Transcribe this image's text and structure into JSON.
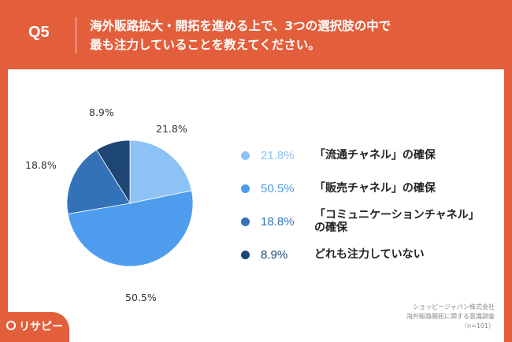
{
  "header": {
    "question_no": "Q5",
    "question_lines": [
      "海外販路拡大・開拓を進める上で、3つの選択肢の中で",
      "最も注力していることを教えてください。"
    ]
  },
  "chart_data": {
    "type": "pie",
    "slices": [
      {
        "percent_label": "21.8%",
        "value": 21.8,
        "legend_label": "「流通チャネル」の確保",
        "color": "#8cc3f4"
      },
      {
        "percent_label": "50.5%",
        "value": 50.5,
        "legend_label": "「販売チャネル」の確保",
        "color": "#4e9ced"
      },
      {
        "percent_label": "18.8%",
        "value": 18.8,
        "legend_label": "「コミュニケーションチャネル」の確保",
        "legend_lines": [
          "「コミュニケーションチャネル」",
          "の確保"
        ],
        "color": "#3372b6"
      },
      {
        "percent_label": "8.9%",
        "value": 8.9,
        "legend_label": "どれも注力していない",
        "color": "#1e4674"
      }
    ]
  },
  "source": {
    "lines": [
      "ショッピージャパン株式会社",
      "海外販路開拓に関する意識調査",
      "（n=101）"
    ]
  },
  "brand": {
    "name": "リサピー",
    "color": "#e35f3c"
  }
}
